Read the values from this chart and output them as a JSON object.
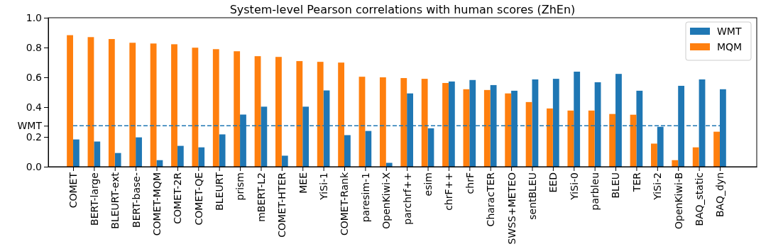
{
  "chart_data": {
    "type": "bar",
    "title": "System-level Pearson correlations with human scores (ZhEn)",
    "categories": [
      "COMET",
      "BERT-large",
      "BLEURT-ext",
      "BERT-base-",
      "COMET-MQM",
      "COMET-2R",
      "COMET-QE",
      "BLEURT",
      "prism",
      "mBERT-L2",
      "COMET-HTER",
      "MEE",
      "YiSi-1",
      "COMET-Rank",
      "paresim-1",
      "OpenKiwi-X",
      "parchrf++",
      "esim",
      "chrF++",
      "chrF",
      "CharacTER",
      "SWSS+METEO",
      "sentBLEU",
      "EED",
      "YiSi-0",
      "parbleu",
      "BLEU",
      "TER",
      "YiSi-2",
      "OpenKiwi-B",
      "BAQ_static",
      "BAQ_dyn"
    ],
    "series": [
      {
        "name": "WMT",
        "color": "#1f77b4",
        "values": [
          0.183,
          0.169,
          0.092,
          0.197,
          0.044,
          0.14,
          0.13,
          0.217,
          0.35,
          0.403,
          0.074,
          0.403,
          0.512,
          0.212,
          0.24,
          0.026,
          0.492,
          0.258,
          0.572,
          0.582,
          0.548,
          0.51,
          0.586,
          0.59,
          0.638,
          0.567,
          0.623,
          0.51,
          0.268,
          0.543,
          0.586,
          0.52
        ]
      },
      {
        "name": "MQM",
        "color": "#ff7f0e",
        "values": [
          0.883,
          0.87,
          0.857,
          0.832,
          0.827,
          0.822,
          0.799,
          0.789,
          0.775,
          0.742,
          0.737,
          0.709,
          0.704,
          0.699,
          0.604,
          0.6,
          0.595,
          0.59,
          0.562,
          0.52,
          0.515,
          0.492,
          0.434,
          0.391,
          0.377,
          0.377,
          0.354,
          0.349,
          0.155,
          0.044,
          0.13,
          0.235
        ]
      }
    ],
    "ylim": [
      0,
      1
    ],
    "yticks": [
      {
        "value": 0,
        "label": "0.0"
      },
      {
        "value": 0.2,
        "label": "0.2"
      },
      {
        "value": 0.275,
        "label": "WMT"
      },
      {
        "value": 0.4,
        "label": "0.4"
      },
      {
        "value": 0.6,
        "label": "0.6"
      },
      {
        "value": 0.8,
        "label": "0.8"
      },
      {
        "value": 1,
        "label": "1.0"
      }
    ],
    "ref_lines": [
      {
        "axis": "y",
        "value": 0.275,
        "color": "#1f77b4",
        "line_style": "dashed"
      }
    ],
    "legend": "top right"
  }
}
